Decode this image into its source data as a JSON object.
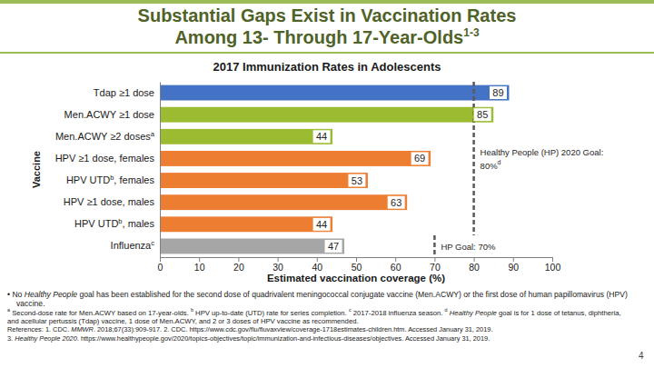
{
  "slide": {
    "title": [
      "Substantial Gaps Exist in Vaccination Rates",
      "Among 13- Through 17-Year-Olds"
    ],
    "title_note": "1-3",
    "notes": [
      [
        {
          "text": "• No "
        },
        {
          "italic": "Healthy People"
        },
        {
          "text": " goal has been established for the second dose of quadrivalent meningococcal conjugate vaccine (Men.ACWY) or the first dose of human papillomavirus (HPV) vaccine."
        }
      ],
      [
        {
          "sup": "a"
        },
        {
          "text": " Second-dose rate for Men.ACWY based on 17-year-olds. "
        },
        {
          "sup": "b"
        },
        {
          "text": " HPV up-to-date (UTD) rate for series completion. "
        },
        {
          "sup": "c"
        },
        {
          "text": " 2017-2018 influenza season. "
        },
        {
          "sup": "d"
        },
        {
          "italic": " Healthy People"
        },
        {
          "text": " goal is for 1 dose of tetanus, diphtheria, and acellular pertussis (Tdap) vaccine, 1 dose of Men.ACWY, and 2 or 3 doses of HPV vaccine as recommended."
        }
      ],
      [
        {
          "text": "References: 1. CDC. "
        },
        {
          "italic": "MMWR"
        },
        {
          "text": ". 2018;67(33):909-917. 2. CDC. https://www.cdc.gov/flu/fluvaxview/coverage-1718estimates-children.htm. Accessed January 31, 2019."
        }
      ],
      [
        {
          "text": "3. "
        },
        {
          "italic": "Healthy People 2020"
        },
        {
          "text": ". https://www.healthypeople.gov/2020/topics-objectives/topic/immunization-and-infectious-diseases/objectives. Accessed January 31, 2019."
        }
      ]
    ],
    "page_number": 4
  },
  "chart_data": {
    "type": "bar",
    "orientation": "horizontal",
    "title": "2017 Immunization Rates in Adolescents",
    "x_label": "Estimated vaccination coverage (%)",
    "y_label": "Vaccine",
    "categories": [
      "Tdap ≥1 dose",
      "Men.ACWY ≥1 dose",
      "Men.ACWY ≥2 doses",
      "HPV  ≥1 dose, females",
      "HPV UTD",
      "HPV ≥1 dose, males",
      "HPV UTD",
      "Influenza"
    ],
    "category_notes": [
      null,
      null,
      "a",
      null,
      "b",
      null,
      "b",
      "c"
    ],
    "category_suffixes": [
      null,
      null,
      null,
      null,
      ", females",
      null,
      ", males",
      null
    ],
    "values": [
      89,
      85,
      44,
      69,
      53,
      63,
      44,
      47
    ],
    "colors": [
      "#4472c4",
      "#9bbb31",
      "#9bbb31",
      "#ed7d31",
      "#ed7d31",
      "#ed7d31",
      "#ed7d31",
      "#a6a6a6"
    ],
    "xlim": [
      0,
      100
    ],
    "xticks": [
      0,
      10,
      20,
      30,
      40,
      50,
      60,
      70,
      80,
      90,
      100
    ],
    "grid": false,
    "data_labels": true,
    "reference_lines": [
      {
        "value": 80,
        "label": [
          "Healthy People (HP) 2020 Goal:",
          "80%"
        ],
        "note": "d",
        "span": [
          0,
          6
        ]
      },
      {
        "value": 70,
        "label": [
          "HP Goal: 70%"
        ],
        "span": [
          7,
          7
        ]
      }
    ]
  }
}
